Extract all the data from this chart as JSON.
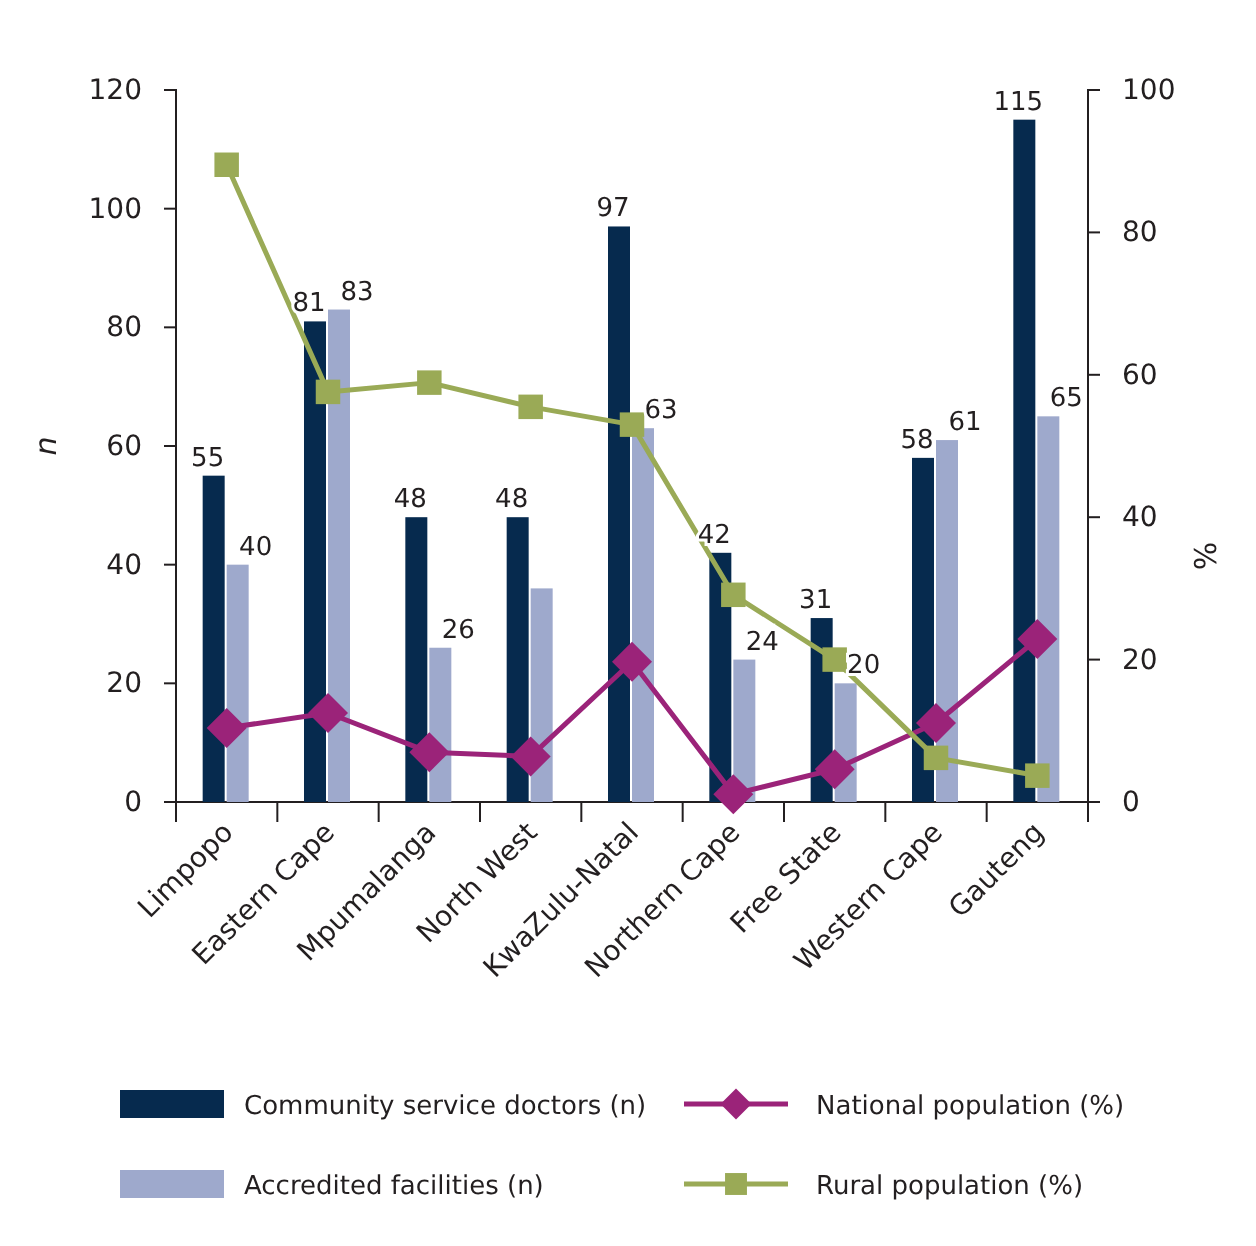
{
  "chart_data": {
    "type": "bar",
    "categories": [
      "Limpopo",
      "Eastern Cape",
      "Mpumalanga",
      "North West",
      "KwaZulu-Natal",
      "Northern Cape",
      "Free State",
      "Western Cape",
      "Gauteng"
    ],
    "ylabel": "n",
    "y2label": "%",
    "ylim": [
      0,
      120
    ],
    "yticks": [
      0,
      20,
      40,
      60,
      80,
      100,
      120
    ],
    "y2lim": [
      0,
      100
    ],
    "y2ticks": [
      0,
      20,
      40,
      60,
      80,
      100
    ],
    "grid": false,
    "legend": "bottom",
    "series": [
      {
        "name": "Community service doctors (n)",
        "color": "#062a4e",
        "values": [
          55,
          81,
          48,
          48,
          97,
          42,
          31,
          58,
          115
        ],
        "value_labels": [
          "55",
          "81",
          "48",
          "48",
          "97",
          "42",
          "31",
          "58",
          "115"
        ]
      },
      {
        "name": "Accredited facilities (n)",
        "color": "#9ea9cc",
        "values": [
          40,
          83,
          26,
          36,
          63,
          24,
          20,
          61,
          65
        ],
        "value_labels": [
          "40",
          "83",
          "26",
          null,
          "63",
          "24",
          "20",
          "61",
          "65"
        ]
      },
      {
        "name": "National population (%)",
        "type": "line",
        "axis": "y2",
        "marker": "diamond",
        "color": "#9b2379",
        "values": [
          10.4,
          12.5,
          7,
          6.4,
          19.7,
          1.1,
          4.6,
          11.1,
          22.9
        ]
      },
      {
        "name": "Rural population (%)",
        "type": "line",
        "axis": "y2",
        "marker": "square",
        "color": "#9aaa56",
        "values": [
          89.5,
          57.6,
          58.9,
          55.5,
          53,
          29.1,
          20,
          6.2,
          3.7
        ]
      }
    ]
  }
}
